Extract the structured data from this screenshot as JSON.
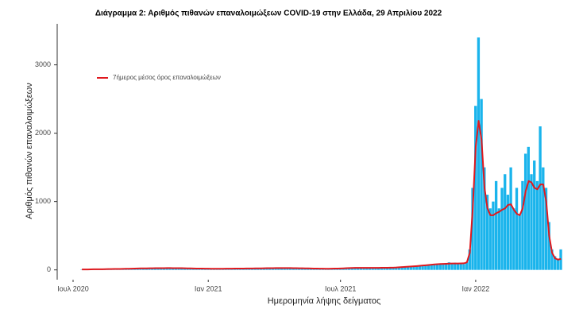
{
  "chart_data": {
    "type": "bar",
    "title": "Διάγραμμα 2: Αριθμός πιθανών επαναλοιμώξεων COVID-19 στην Ελλάδα, 29 Απριλίου 2022",
    "x_label": "Ημερομηνία λήψης δείγματος",
    "y_label": "Αριθμός πιθανών επαναλοιμώξεων",
    "categories": [
      "Ιουλ 2020",
      null,
      null,
      null,
      null,
      null,
      null,
      null,
      null,
      null,
      null,
      null,
      null,
      null,
      null,
      null,
      null,
      null,
      null,
      null,
      null,
      null,
      null,
      null,
      null,
      null,
      null,
      null,
      null,
      null,
      null,
      null,
      null,
      null,
      null,
      null,
      null,
      null,
      null,
      null,
      null,
      null,
      null,
      null,
      null,
      null,
      "Ιαν 2021",
      null,
      null,
      null,
      null,
      null,
      null,
      null,
      null,
      null,
      null,
      null,
      null,
      null,
      null,
      null,
      null,
      null,
      null,
      null,
      null,
      null,
      null,
      null,
      null,
      null,
      null,
      null,
      null,
      null,
      null,
      null,
      null,
      null,
      null,
      null,
      null,
      null,
      null,
      null,
      null,
      null,
      null,
      null,
      null,
      "Ιουλ 2021",
      null,
      null,
      null,
      null,
      null,
      null,
      null,
      null,
      null,
      null,
      null,
      null,
      null,
      null,
      null,
      null,
      null,
      null,
      null,
      null,
      null,
      null,
      null,
      null,
      null,
      null,
      null,
      null,
      null,
      null,
      null,
      null,
      null,
      null,
      null,
      null,
      null,
      null,
      null,
      null,
      null,
      null,
      null,
      null,
      null,
      "Ιαν 2022",
      null,
      null,
      null,
      null,
      null,
      null,
      null,
      null,
      null,
      null,
      null,
      null,
      null,
      null,
      null,
      null,
      null,
      null,
      null,
      null,
      null,
      null,
      null,
      null,
      null,
      null,
      null,
      null,
      null
    ],
    "series": [
      {
        "type": "bar",
        "color": "#1ab4ec",
        "values": [
          null,
          null,
          null,
          5,
          8,
          6,
          10,
          7,
          12,
          9,
          8,
          11,
          14,
          10,
          12,
          15,
          13,
          16,
          18,
          14,
          20,
          22,
          18,
          25,
          20,
          24,
          28,
          22,
          26,
          30,
          25,
          28,
          24,
          30,
          26,
          22,
          28,
          25,
          20,
          24,
          22,
          18,
          20,
          16,
          22,
          18,
          15,
          20,
          17,
          14,
          18,
          16,
          20,
          15,
          18,
          22,
          19,
          16,
          20,
          24,
          21,
          18,
          22,
          26,
          20,
          24,
          28,
          25,
          30,
          27,
          24,
          28,
          32,
          26,
          30,
          28,
          25,
          22,
          26,
          20,
          24,
          18,
          22,
          16,
          20,
          14,
          18,
          15,
          20,
          17,
          22,
          20,
          25,
          28,
          32,
          30,
          35,
          28,
          26,
          30,
          33,
          28,
          25,
          30,
          27,
          32,
          35,
          30,
          28,
          34,
          38,
          40,
          45,
          42,
          50,
          48,
          55,
          60,
          58,
          65,
          70,
          75,
          80,
          85,
          90,
          95,
          88,
          100,
          110,
          95,
          105,
          90,
          100,
          85,
          110,
          300,
          1200,
          2400,
          3400,
          2500,
          1500,
          1100,
          900,
          1000,
          1300,
          900,
          1200,
          1400,
          1100,
          1500,
          900,
          1200,
          800,
          1300,
          1700,
          1800,
          1400,
          1600,
          1300,
          2100,
          1500,
          1200,
          700,
          300,
          200,
          150,
          300
        ]
      },
      {
        "type": "line",
        "name": "7ήμερος μέσος όρος επαναλοιμώξεων",
        "color": "#e0191e",
        "values": [
          null,
          null,
          null,
          6,
          7,
          7,
          8,
          9,
          9,
          10,
          10,
          11,
          12,
          12,
          13,
          14,
          14,
          15,
          16,
          17,
          18,
          20,
          21,
          22,
          22,
          23,
          24,
          24,
          25,
          26,
          26,
          26,
          27,
          27,
          26,
          26,
          25,
          25,
          24,
          23,
          22,
          21,
          20,
          19,
          19,
          18,
          18,
          17,
          17,
          17,
          17,
          17,
          18,
          18,
          18,
          19,
          19,
          19,
          20,
          21,
          21,
          21,
          22,
          23,
          23,
          24,
          25,
          26,
          26,
          27,
          27,
          27,
          27,
          27,
          27,
          26,
          25,
          24,
          24,
          23,
          22,
          21,
          20,
          19,
          18,
          18,
          17,
          17,
          18,
          19,
          19,
          21,
          23,
          25,
          27,
          28,
          29,
          29,
          29,
          29,
          29,
          29,
          29,
          29,
          30,
          31,
          31,
          31,
          32,
          33,
          35,
          38,
          41,
          44,
          47,
          50,
          53,
          56,
          60,
          64,
          68,
          72,
          76,
          80,
          84,
          86,
          88,
          90,
          92,
          93,
          94,
          94,
          95,
          96,
          110,
          250,
          900,
          1800,
          2180,
          1900,
          1200,
          900,
          800,
          800,
          830,
          850,
          880,
          900,
          950,
          960,
          880,
          820,
          800,
          900,
          1150,
          1300,
          1280,
          1200,
          1180,
          1250,
          1250,
          1000,
          500,
          250,
          170,
          150,
          160
        ]
      }
    ],
    "ylim": [
      -120,
      3600
    ],
    "yticks": [
      0,
      1000,
      2000,
      3000
    ],
    "grid": false,
    "legend": "top-left"
  }
}
